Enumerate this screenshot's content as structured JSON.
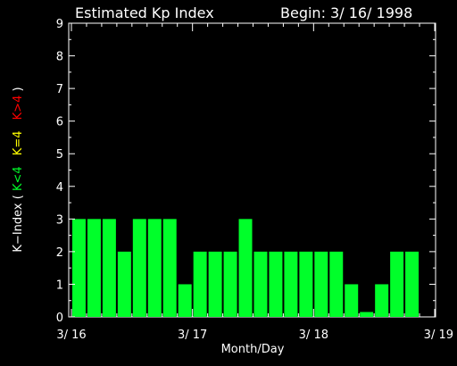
{
  "chart_data": {
    "type": "bar",
    "title": "Estimated Kp Index",
    "begin_label": "Begin: 3/ 16/ 1998",
    "xlabel": "Month/Day",
    "ylabel": {
      "prefix": "K−Index ( ",
      "green": "K<4",
      "yellow": "K=4",
      "red": "K>4",
      "suffix": " )"
    },
    "ylim": [
      0,
      9
    ],
    "yticks": [
      "0",
      "1",
      "2",
      "3",
      "4",
      "5",
      "6",
      "7",
      "8",
      "9"
    ],
    "xticks": [
      "3/ 16",
      "3/ 17",
      "3/ 18",
      "3/ 19"
    ],
    "bars_per_day": 8,
    "values": [
      3,
      3,
      3,
      2,
      3,
      3,
      3,
      1,
      2,
      2,
      2,
      3,
      2,
      2,
      2,
      2,
      2,
      2,
      1,
      0.15,
      1,
      2,
      2
    ],
    "colors": {
      "low": "#00ff2a",
      "mid": "#ffff00",
      "high": "#ff0000"
    },
    "grid": false
  }
}
